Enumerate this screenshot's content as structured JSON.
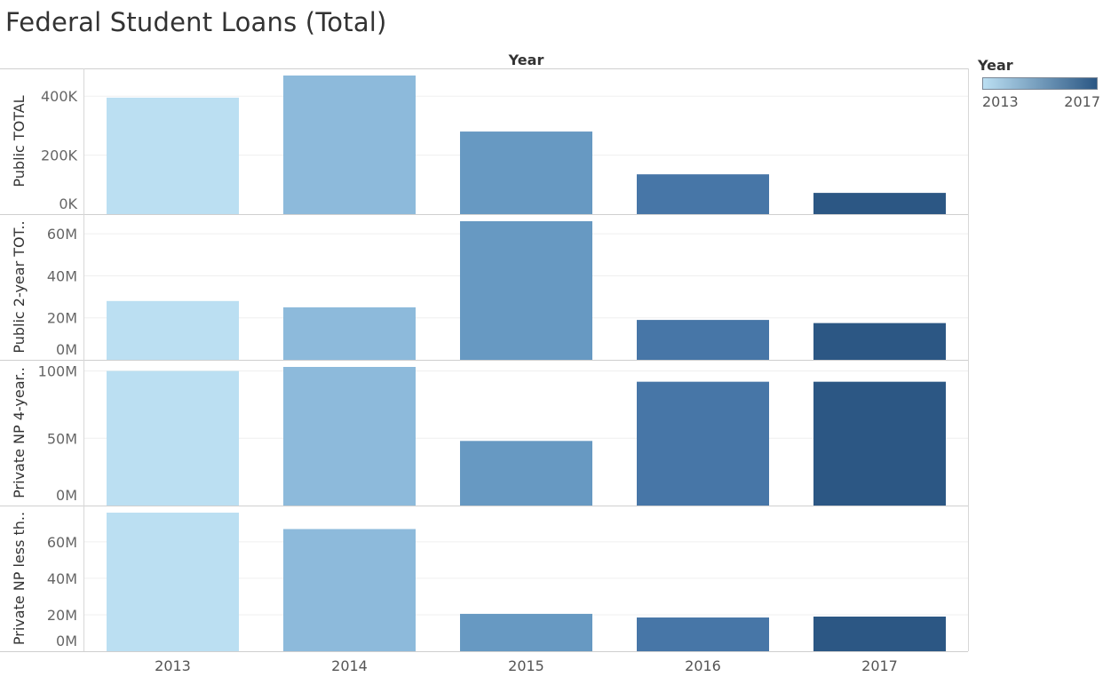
{
  "title": "Federal Student Loans (Total)",
  "legend": {
    "title": "Year",
    "min_label": "2013",
    "max_label": "2017",
    "color_start": "#bbdff2",
    "color_end": "#2b5784"
  },
  "chart_data": {
    "type": "bar",
    "column_header": "Year",
    "categories": [
      "2013",
      "2014",
      "2015",
      "2016",
      "2017"
    ],
    "colors": [
      "#bbdff2",
      "#8dbadb",
      "#6799c2",
      "#4776a7",
      "#2c5784"
    ],
    "panels": [
      {
        "label": "Public TOTAL",
        "ylim": [
          0,
          470000
        ],
        "ticks": [
          {
            "value": 0,
            "label": "0K"
          },
          {
            "value": 200000,
            "label": "200K"
          },
          {
            "value": 400000,
            "label": "400K"
          }
        ],
        "values": [
          395000,
          470000,
          280000,
          135000,
          72000
        ]
      },
      {
        "label": "Public 2-year TOT..",
        "ylim": [
          0,
          66000000
        ],
        "ticks": [
          {
            "value": 0,
            "label": "0M"
          },
          {
            "value": 20000000,
            "label": "20M"
          },
          {
            "value": 40000000,
            "label": "40M"
          },
          {
            "value": 60000000,
            "label": "60M"
          }
        ],
        "values": [
          28000000,
          25000000,
          66000000,
          19000000,
          17500000
        ]
      },
      {
        "label": "Private NP 4-year..",
        "ylim": [
          0,
          103000000
        ],
        "ticks": [
          {
            "value": 0,
            "label": "0M"
          },
          {
            "value": 50000000,
            "label": "50M"
          },
          {
            "value": 100000000,
            "label": "100M"
          }
        ],
        "values": [
          100000000,
          103000000,
          48000000,
          92000000,
          92000000
        ]
      },
      {
        "label": "Private NP less th..",
        "ylim": [
          0,
          76000000
        ],
        "ticks": [
          {
            "value": 0,
            "label": "0M"
          },
          {
            "value": 20000000,
            "label": "20M"
          },
          {
            "value": 40000000,
            "label": "40M"
          },
          {
            "value": 60000000,
            "label": "60M"
          }
        ],
        "values": [
          76000000,
          67000000,
          20500000,
          18500000,
          19000000
        ]
      }
    ]
  }
}
